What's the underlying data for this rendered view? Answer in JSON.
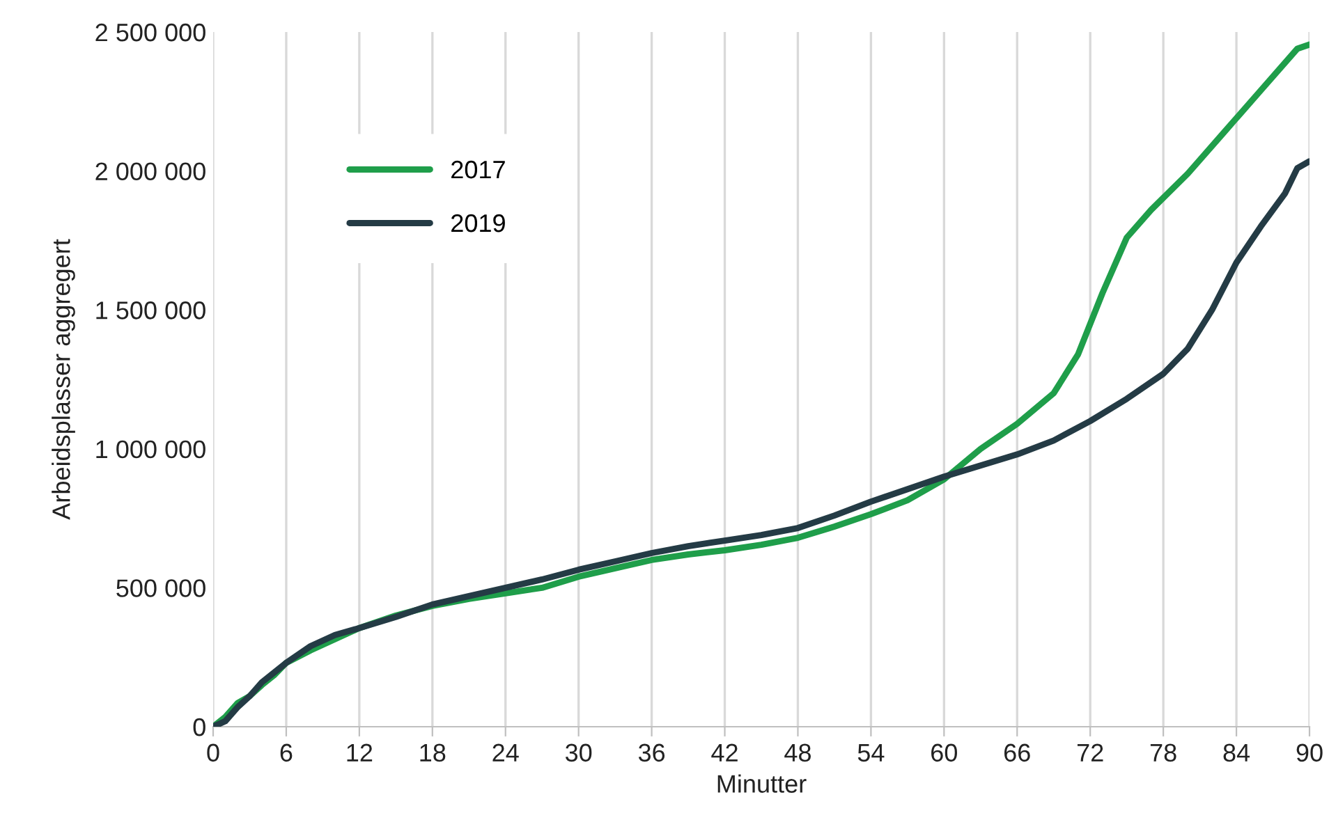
{
  "chart_data": {
    "type": "line",
    "xlabel": "Minutter",
    "ylabel": "Arbeidsplasser aggregert",
    "xlim": [
      0,
      90
    ],
    "ylim": [
      0,
      2500000
    ],
    "xticks": [
      0,
      6,
      12,
      18,
      24,
      30,
      36,
      42,
      48,
      54,
      60,
      66,
      72,
      78,
      84,
      90
    ],
    "yticks": [
      {
        "value": 0,
        "label": "0"
      },
      {
        "value": 500000,
        "label": "500 000"
      },
      {
        "value": 1000000,
        "label": "1 000 000"
      },
      {
        "value": 1500000,
        "label": "1 500 000"
      },
      {
        "value": 2000000,
        "label": "2 000 000"
      },
      {
        "value": 2500000,
        "label": "2 500 000"
      }
    ],
    "grid": "x",
    "legend": "top left",
    "marker": "none",
    "line_style": "solid",
    "series": [
      {
        "name": "2017",
        "color": "#1f9e4a",
        "x": [
          0,
          1,
          2,
          3,
          4,
          5,
          6,
          8,
          10,
          12,
          15,
          18,
          21,
          24,
          27,
          30,
          33,
          36,
          39,
          42,
          45,
          48,
          51,
          54,
          57,
          60,
          63,
          66,
          69,
          71,
          73,
          75,
          77,
          80,
          83,
          86,
          89,
          90
        ],
        "values": [
          0,
          35000,
          85000,
          110000,
          150000,
          185000,
          230000,
          275000,
          315000,
          355000,
          400000,
          435000,
          460000,
          480000,
          500000,
          540000,
          570000,
          600000,
          620000,
          635000,
          655000,
          680000,
          720000,
          765000,
          815000,
          890000,
          1000000,
          1090000,
          1200000,
          1340000,
          1560000,
          1760000,
          1860000,
          1990000,
          2140000,
          2290000,
          2440000,
          2455000
        ]
      },
      {
        "name": "2019",
        "color": "#243b45",
        "x": [
          0,
          1,
          2,
          3,
          4,
          5,
          6,
          8,
          10,
          12,
          15,
          18,
          21,
          24,
          27,
          30,
          33,
          36,
          39,
          42,
          45,
          48,
          51,
          54,
          57,
          60,
          63,
          66,
          69,
          72,
          75,
          78,
          80,
          82,
          84,
          86,
          88,
          89,
          90
        ],
        "values": [
          0,
          20000,
          70000,
          110000,
          160000,
          195000,
          230000,
          290000,
          330000,
          355000,
          395000,
          440000,
          470000,
          500000,
          530000,
          565000,
          595000,
          625000,
          650000,
          670000,
          690000,
          715000,
          760000,
          810000,
          855000,
          900000,
          940000,
          980000,
          1030000,
          1100000,
          1180000,
          1270000,
          1360000,
          1500000,
          1670000,
          1800000,
          1920000,
          2010000,
          2035000
        ]
      }
    ]
  }
}
